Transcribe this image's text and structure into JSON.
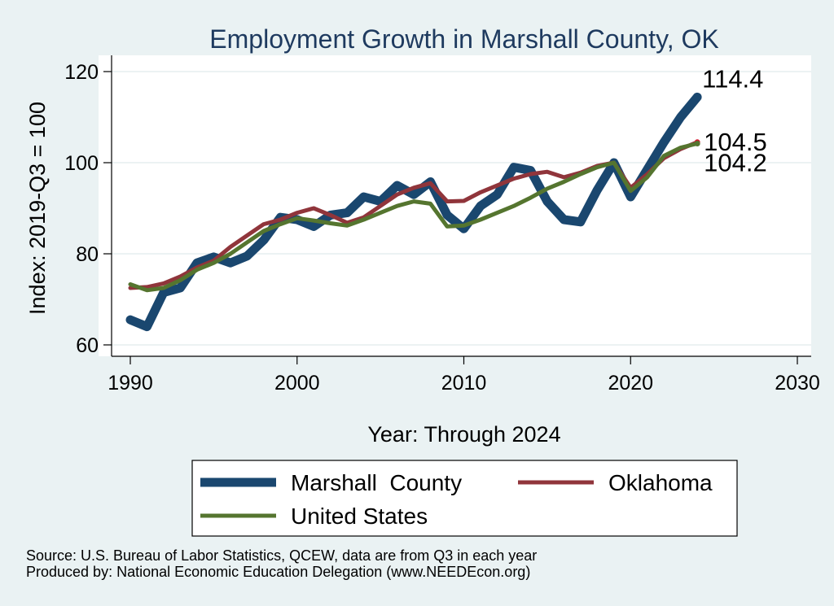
{
  "chart_data": {
    "type": "line",
    "title": "Employment Growth in Marshall County, OK",
    "xlabel": "Year: Through 2024",
    "ylabel": "Index: 2019-Q3 = 100",
    "xlim": [
      1990,
      2030
    ],
    "ylim": [
      60,
      120
    ],
    "xticks": [
      "1990",
      "2000",
      "2010",
      "2020",
      "2030"
    ],
    "yticks": [
      "60",
      "80",
      "100",
      "120"
    ],
    "grid": true,
    "x": [
      1990,
      1991,
      1992,
      1993,
      1994,
      1995,
      1996,
      1997,
      1998,
      1999,
      2000,
      2001,
      2002,
      2003,
      2004,
      2005,
      2006,
      2007,
      2008,
      2009,
      2010,
      2011,
      2012,
      2013,
      2014,
      2015,
      2016,
      2017,
      2018,
      2019,
      2020,
      2021,
      2022,
      2023,
      2024
    ],
    "series": [
      {
        "name": "Marshall  County",
        "color": "#1a476f",
        "values": [
          65.5,
          64,
          71.5,
          72.5,
          78,
          79.3,
          78,
          79.5,
          83,
          88,
          87.5,
          86,
          88.5,
          89,
          92.5,
          91.5,
          95,
          93,
          95.8,
          88.5,
          85.5,
          90.5,
          93,
          99,
          98.3,
          91.5,
          87.5,
          87,
          94,
          100,
          92.5,
          98.5,
          104.5,
          110,
          114.4
        ],
        "end_label": "114.4"
      },
      {
        "name": "Oklahoma",
        "color": "#90353b",
        "values": [
          72.5,
          72.7,
          73.5,
          75,
          77,
          78.5,
          81.5,
          84,
          86.5,
          87.5,
          89,
          90,
          88.5,
          86.8,
          88,
          90.5,
          93,
          94.5,
          95.5,
          91.5,
          91.6,
          93.5,
          95,
          96.5,
          97.5,
          98,
          96.8,
          97.8,
          99.3,
          100,
          94.5,
          97.5,
          101,
          103,
          104.5
        ],
        "end_label": "104.5"
      },
      {
        "name": "United States",
        "color": "#55752f",
        "values": [
          73.3,
          72,
          72.5,
          74.2,
          76.5,
          78,
          80,
          82.5,
          85,
          86.5,
          87.8,
          87.3,
          86.7,
          86.2,
          87.5,
          89,
          90.5,
          91.5,
          91,
          86,
          86.2,
          87.5,
          89,
          90.5,
          92.3,
          94.3,
          95.8,
          97.5,
          99,
          100,
          93.8,
          96.8,
          101.5,
          103.3,
          104.2
        ],
        "end_label": "104.2"
      }
    ],
    "legend": {
      "position": "bottom"
    },
    "source_line1": "Source: U.S. Bureau of Labor Statistics, QCEW, data are from Q3 in each year",
    "source_line2": "Produced by: National Economic Education Delegation (www.NEEDEcon.org)"
  }
}
